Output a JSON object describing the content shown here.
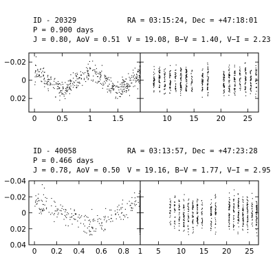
{
  "stars": [
    {
      "id_text": "ID - 20329",
      "period_text": "P = 0.900 days",
      "j_aov_text": "J = 0.80, AoV = 0.51",
      "ra_dec_text": "RA = 03:15:24, Dec = +47:18:01",
      "photometry_text": "V = 19.08, B−V = 1.40, V−I = 2.23"
    },
    {
      "id_text": "ID - 40058",
      "period_text": "P = 0.466 days",
      "j_aov_text": "J = 0.78, AoV = 0.50",
      "ra_dec_text": "RA = 03:13:57, Dec = +47:23:28",
      "photometry_text": "V = 19.16, B−V = 1.77, V−I = 2.95"
    }
  ],
  "chart_data": [
    {
      "type": "scatter",
      "panel": "star-1-phased",
      "title": "",
      "xlabel": "",
      "ylabel": "",
      "xlim": [
        -0.1,
        1.9
      ],
      "ylim": [
        0.035,
        -0.03
      ],
      "y_inverted": true,
      "x_ticks": [
        0,
        0.5,
        1,
        1.5
      ],
      "x_tick_labels": [
        "0",
        "0.5",
        "1",
        "1.5"
      ],
      "y_ticks": [
        -0.02,
        0,
        0.02
      ],
      "y_tick_labels": [
        "−0.02",
        "0",
        "0.02"
      ],
      "amplitude": 0.009,
      "points_per_cycle": 220,
      "cycles": 2
    },
    {
      "type": "scatter",
      "panel": "star-1-time",
      "title": "",
      "xlabel": "",
      "ylabel": "",
      "xlim": [
        5,
        27
      ],
      "ylim": [
        0.035,
        -0.03
      ],
      "y_inverted": true,
      "x_ticks": [
        10,
        15,
        20,
        25
      ],
      "x_tick_labels": [
        "10",
        "15",
        "20",
        "25"
      ],
      "night_centers": [
        7.5,
        8.5,
        9.5,
        10.5,
        11.5,
        12.5,
        13.5,
        14.5,
        16.5,
        17.5,
        20.5,
        21.5,
        22.5,
        23.5,
        24.5,
        25.5,
        26.5
      ],
      "amplitude": 0.009
    },
    {
      "type": "scatter",
      "panel": "star-2-phased",
      "title": "",
      "xlabel": "",
      "ylabel": "",
      "xlim": [
        -0.05,
        0.95
      ],
      "ylim": [
        0.04,
        -0.04
      ],
      "y_inverted": true,
      "x_ticks": [
        0,
        0.2,
        0.4,
        0.6,
        0.8
      ],
      "x_tick_labels": [
        "0",
        "0.2",
        "0.4",
        "0.6",
        "0.8"
      ],
      "y_ticks": [
        -0.04,
        -0.02,
        0,
        0.02,
        0.04
      ],
      "y_tick_labels": [
        "−0.04",
        "−0.02",
        "0",
        "0.02",
        "0.04"
      ],
      "amplitude": 0.013,
      "points_per_cycle": 220,
      "cycles": 2
    },
    {
      "type": "scatter",
      "panel": "star-2-time",
      "title": "",
      "xlabel": "",
      "ylabel": "",
      "xlim": [
        1,
        27
      ],
      "ylim": [
        0.04,
        -0.04
      ],
      "y_inverted": true,
      "x_ticks": [
        1,
        5,
        10,
        15,
        20,
        25
      ],
      "x_tick_labels": [
        "1",
        "5",
        "10",
        "15",
        "20",
        "25"
      ],
      "night_centers": [
        7.5,
        8.5,
        9.5,
        10.5,
        11.5,
        12.5,
        13.5,
        14.5,
        16.5,
        17.5,
        20.5,
        21.5,
        22.5,
        23.5,
        24.5,
        25.5,
        26.5
      ],
      "amplitude": 0.013
    }
  ]
}
